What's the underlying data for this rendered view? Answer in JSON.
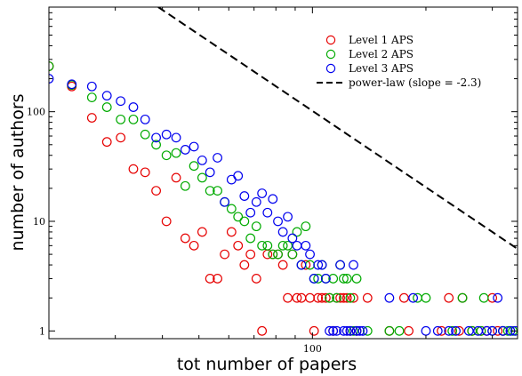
{
  "chart_data": {
    "type": "scatter",
    "xlabel": "tot number of papers",
    "ylabel": "number of authors",
    "xscale": "log",
    "yscale": "log",
    "xlim": [
      20,
      350
    ],
    "ylim": [
      0.85,
      900
    ],
    "xticks": [
      {
        "value": 100,
        "label": "100"
      }
    ],
    "yticks": [
      {
        "value": 1,
        "label": "1"
      },
      {
        "value": 10,
        "label": "10"
      },
      {
        "value": 100,
        "label": "100"
      }
    ],
    "grid": false,
    "legend_position": "top-right",
    "series": [
      {
        "name": "Level 1 APS",
        "color": "#e60000",
        "marker": "open-circle",
        "points": [
          [
            20,
            260
          ],
          [
            23,
            170
          ],
          [
            26,
            88
          ],
          [
            28.5,
            53
          ],
          [
            31,
            58
          ],
          [
            33.5,
            30
          ],
          [
            36,
            28
          ],
          [
            38.5,
            19
          ],
          [
            41,
            10
          ],
          [
            43.5,
            25
          ],
          [
            46,
            7
          ],
          [
            48.5,
            6
          ],
          [
            51,
            8
          ],
          [
            53.5,
            3
          ],
          [
            56,
            3
          ],
          [
            58.5,
            5
          ],
          [
            61,
            8
          ],
          [
            63.5,
            6
          ],
          [
            66,
            4
          ],
          [
            68.5,
            5
          ],
          [
            71,
            3
          ],
          [
            73.5,
            1
          ],
          [
            76,
            5
          ],
          [
            78.5,
            5
          ],
          [
            81,
            5
          ],
          [
            83.5,
            4
          ],
          [
            86,
            2
          ],
          [
            88.5,
            5
          ],
          [
            91,
            2
          ],
          [
            93.5,
            2
          ],
          [
            96,
            4
          ],
          [
            98.5,
            2
          ],
          [
            101,
            1
          ],
          [
            103.5,
            2
          ],
          [
            106,
            2
          ],
          [
            108.5,
            2
          ],
          [
            111,
            2
          ],
          [
            113.5,
            1
          ],
          [
            116,
            2
          ],
          [
            118.5,
            2
          ],
          [
            121,
            2
          ],
          [
            123.5,
            2
          ],
          [
            126,
            1
          ],
          [
            128.5,
            2
          ],
          [
            131,
            1
          ],
          [
            140,
            2
          ],
          [
            160,
            1
          ],
          [
            175,
            2
          ],
          [
            180,
            1
          ],
          [
            220,
            1
          ],
          [
            230,
            2
          ],
          [
            245,
            1
          ],
          [
            250,
            2
          ],
          [
            265,
            1
          ],
          [
            280,
            1
          ],
          [
            290,
            1
          ],
          [
            300,
            2
          ],
          [
            310,
            1
          ],
          [
            320,
            1
          ]
        ]
      },
      {
        "name": "Level 2 APS",
        "color": "#00aa00",
        "marker": "open-circle",
        "points": [
          [
            20,
            260
          ],
          [
            23,
            175
          ],
          [
            26,
            135
          ],
          [
            28.5,
            110
          ],
          [
            31,
            85
          ],
          [
            33.5,
            85
          ],
          [
            36,
            62
          ],
          [
            38.5,
            50
          ],
          [
            41,
            40
          ],
          [
            43.5,
            42
          ],
          [
            46,
            21
          ],
          [
            48.5,
            32
          ],
          [
            51,
            25
          ],
          [
            53.5,
            19
          ],
          [
            56,
            19
          ],
          [
            58.5,
            15
          ],
          [
            61,
            13
          ],
          [
            63.5,
            11
          ],
          [
            66,
            10
          ],
          [
            68.5,
            7
          ],
          [
            71,
            9
          ],
          [
            73.5,
            6
          ],
          [
            76,
            6
          ],
          [
            78.5,
            5
          ],
          [
            81,
            5
          ],
          [
            83.5,
            6
          ],
          [
            86,
            6
          ],
          [
            88.5,
            5
          ],
          [
            91,
            8
          ],
          [
            93.5,
            4
          ],
          [
            96,
            9
          ],
          [
            98.5,
            4
          ],
          [
            101,
            3
          ],
          [
            103.5,
            3
          ],
          [
            106,
            4
          ],
          [
            108.5,
            3
          ],
          [
            111,
            2
          ],
          [
            113.5,
            3
          ],
          [
            116,
            2
          ],
          [
            118.5,
            4
          ],
          [
            121,
            3
          ],
          [
            123.5,
            3
          ],
          [
            126,
            2
          ],
          [
            128.5,
            1
          ],
          [
            131,
            3
          ],
          [
            140,
            1
          ],
          [
            160,
            1
          ],
          [
            170,
            1
          ],
          [
            190,
            2
          ],
          [
            200,
            2
          ],
          [
            235,
            1
          ],
          [
            250,
            2
          ],
          [
            265,
            1
          ],
          [
            280,
            1
          ],
          [
            285,
            2
          ],
          [
            300,
            1
          ],
          [
            320,
            1
          ],
          [
            330,
            1
          ],
          [
            340,
            1
          ]
        ]
      },
      {
        "name": "Level 3 APS",
        "color": "#0000ee",
        "marker": "open-circle",
        "points": [
          [
            20,
            200
          ],
          [
            23,
            178
          ],
          [
            26,
            170
          ],
          [
            28.5,
            140
          ],
          [
            31,
            125
          ],
          [
            33.5,
            110
          ],
          [
            36,
            85
          ],
          [
            38.5,
            58
          ],
          [
            41,
            62
          ],
          [
            43.5,
            58
          ],
          [
            46,
            45
          ],
          [
            48.5,
            48
          ],
          [
            51,
            36
          ],
          [
            53.5,
            28
          ],
          [
            56,
            38
          ],
          [
            58.5,
            15
          ],
          [
            61,
            24
          ],
          [
            63.5,
            26
          ],
          [
            66,
            17
          ],
          [
            68.5,
            12
          ],
          [
            71,
            15
          ],
          [
            73.5,
            18
          ],
          [
            76,
            12
          ],
          [
            78.5,
            16
          ],
          [
            81,
            10
          ],
          [
            83.5,
            8
          ],
          [
            86,
            11
          ],
          [
            88.5,
            7
          ],
          [
            91,
            6
          ],
          [
            93.5,
            4
          ],
          [
            96,
            6
          ],
          [
            98.5,
            5
          ],
          [
            101,
            3
          ],
          [
            103.5,
            4
          ],
          [
            106,
            4
          ],
          [
            108.5,
            3
          ],
          [
            111,
            1
          ],
          [
            113.5,
            1
          ],
          [
            116,
            1
          ],
          [
            118.5,
            4
          ],
          [
            121,
            1
          ],
          [
            123.5,
            1
          ],
          [
            126,
            1
          ],
          [
            128.5,
            4
          ],
          [
            131,
            1
          ],
          [
            133.5,
            1
          ],
          [
            136,
            1
          ],
          [
            160,
            2
          ],
          [
            185,
            2
          ],
          [
            200,
            1
          ],
          [
            215,
            1
          ],
          [
            230,
            1
          ],
          [
            240,
            1
          ],
          [
            260,
            1
          ],
          [
            275,
            1
          ],
          [
            290,
            1
          ],
          [
            300,
            1
          ],
          [
            310,
            2
          ],
          [
            320,
            1
          ],
          [
            335,
            1
          ],
          [
            345,
            1
          ]
        ]
      }
    ],
    "fit_line": {
      "name": "power-law (slope = -2.3)",
      "color": "#000000",
      "style": "dashed",
      "slope": -2.3,
      "through": [
        [
          39.0,
          900.0
        ],
        [
          350.0,
          5.6
        ]
      ]
    }
  }
}
